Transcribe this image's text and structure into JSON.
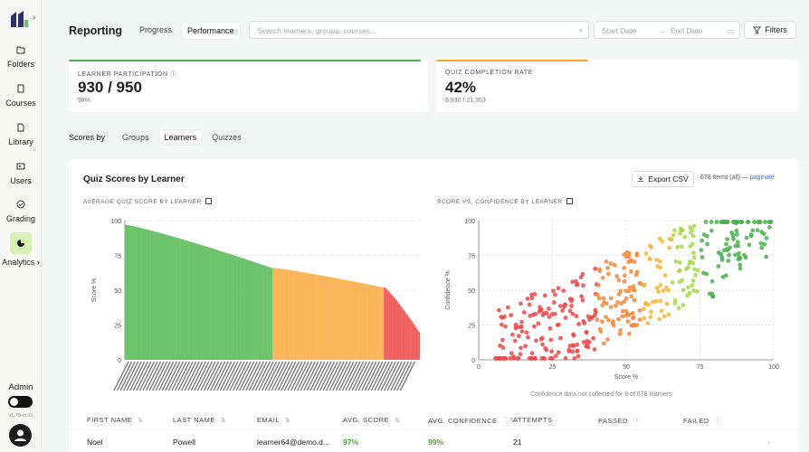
{
  "sidebar": {
    "items": [
      {
        "label": "Folders",
        "icon": "folder-icon"
      },
      {
        "label": "Courses",
        "icon": "book-icon"
      },
      {
        "label": "Library",
        "icon": "library-icon"
      },
      {
        "label": "Users",
        "icon": "users-icon"
      },
      {
        "label": "Grading",
        "icon": "check-circle-icon"
      },
      {
        "label": "Analytics",
        "icon": "pie-chart-icon",
        "active": true
      }
    ],
    "admin_label": "Admin",
    "version": "v1.78-rc.11"
  },
  "header": {
    "title": "Reporting",
    "tabs": [
      "Progress",
      "Performance"
    ],
    "active_tab": "Performance",
    "search_placeholder": "Search learners, groups, courses...",
    "start_date_placeholder": "Start Date",
    "end_date_placeholder": "End Date",
    "filters_label": "Filters"
  },
  "kpis": [
    {
      "label": "LEARNER PARTICIPATION",
      "value": "930 / 950",
      "sub": "98%",
      "color": "#4caf50",
      "fill": 0.98
    },
    {
      "label": "QUIZ COMPLETION RATE",
      "value": "42%",
      "sub": "8,930 / 21,353",
      "color": "#f5a623",
      "fill": 0.42
    }
  ],
  "scores_by": {
    "label": "Scores by",
    "tabs": [
      "Groups",
      "Learners",
      "Quizzes"
    ],
    "active": "Learners"
  },
  "card": {
    "title": "Quiz Scores by Learner",
    "export_label": "Export CSV",
    "items_text": "678 items (all) —",
    "paginate": "paginate",
    "left_chart_title": "AVERAGE QUIZ SCORE BY LEARNER",
    "right_chart_title": "SCORE VS. CONFIDENCE BY LEARNER",
    "note": "Confidence data not collected for 8 of 678 learners"
  },
  "chart_data": [
    {
      "type": "bar",
      "title": "AVERAGE QUIZ SCORE BY LEARNER",
      "ylabel": "Score %",
      "ylim": [
        0,
        100
      ],
      "yticks": [
        0,
        25,
        50,
        75,
        100
      ],
      "n_bars": 678,
      "segments": [
        {
          "range": [
            97,
            66
          ],
          "color": "#6cc36b",
          "share": 0.5
        },
        {
          "range": [
            66,
            52
          ],
          "color": "#fbb55a",
          "share": 0.38
        },
        {
          "range": [
            52,
            20
          ],
          "color": "#f06262",
          "share": 0.12
        }
      ]
    },
    {
      "type": "scatter",
      "title": "SCORE VS. CONFIDENCE BY LEARNER",
      "xlabel": "Score %",
      "ylabel": "Confidence %",
      "xlim": [
        0,
        100
      ],
      "ylim": [
        0,
        100
      ],
      "xticks": [
        0,
        25,
        50,
        75,
        100
      ],
      "yticks": [
        0,
        25,
        50,
        75,
        100
      ],
      "points": 670,
      "colors": [
        "#e84c4c",
        "#f28a3c",
        "#f6b53c",
        "#a8d84c",
        "#4caf50"
      ]
    }
  ],
  "table": {
    "columns": [
      "FIRST NAME",
      "LAST NAME",
      "EMAIL",
      "AVG. SCORE",
      "AVG. CONFIDENCE",
      "ATTEMPTS",
      "PASSED",
      "FAILED"
    ],
    "rows": [
      {
        "first": "Noel",
        "last": "Powell",
        "email": "learner64@demo.d...",
        "score": "97%",
        "confidence": "99%",
        "attempts": "21"
      }
    ]
  }
}
